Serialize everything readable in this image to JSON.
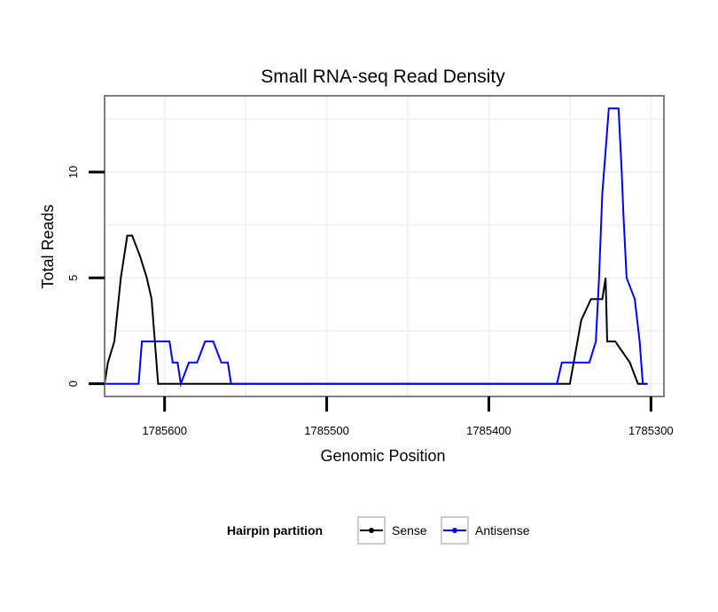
{
  "chart_data": {
    "type": "line",
    "title": "Small RNA-seq Read Density",
    "xlabel": "Genomic Position",
    "ylabel": "Total Reads",
    "x_reversed": true,
    "xlim": [
      1785637,
      1785292
    ],
    "ylim": [
      -0.6,
      13.6
    ],
    "xticks": [
      1785600,
      1785500,
      1785400,
      1785300
    ],
    "xtick_labels": [
      "1785600",
      "1785500",
      "1785400",
      "1785300"
    ],
    "yticks": [
      0,
      5,
      10
    ],
    "ytick_labels": [
      "0",
      "5",
      "10"
    ],
    "grid": true,
    "legend": {
      "title": "Hairpin partition",
      "position": "bottom"
    },
    "series": [
      {
        "name": "Sense",
        "color": "#000000",
        "x": [
          1785637,
          1785635,
          1785631,
          1785627,
          1785623,
          1785620,
          1785615,
          1785611,
          1785608,
          1785606,
          1785604,
          1785601,
          1785400,
          1785350,
          1785343,
          1785337,
          1785330,
          1785328,
          1785327,
          1785322,
          1785313,
          1785308,
          1785302
        ],
        "y": [
          0,
          1,
          2,
          5,
          7,
          7,
          6,
          5,
          4,
          2,
          0,
          0,
          0,
          0,
          3,
          4,
          4,
          5,
          2,
          2,
          1,
          0,
          0
        ]
      },
      {
        "name": "Antisense",
        "color": "#0000ff",
        "x": [
          1785637,
          1785616,
          1785614,
          1785597,
          1785595,
          1785592,
          1785590,
          1785585,
          1785580,
          1785575,
          1785570,
          1785565,
          1785561,
          1785559,
          1785500,
          1785358,
          1785355,
          1785338,
          1785334,
          1785332,
          1785330,
          1785328,
          1785326,
          1785323,
          1785322,
          1785320,
          1785318,
          1785317,
          1785315,
          1785310,
          1785307,
          1785305,
          1785303
        ],
        "y": [
          0,
          0,
          2,
          2,
          1,
          1,
          0,
          1,
          1,
          2,
          2,
          1,
          1,
          0,
          0,
          0,
          1,
          1,
          2,
          5,
          9,
          11,
          13,
          13,
          13,
          13,
          10,
          8,
          5,
          4,
          2,
          0,
          0
        ]
      }
    ]
  }
}
